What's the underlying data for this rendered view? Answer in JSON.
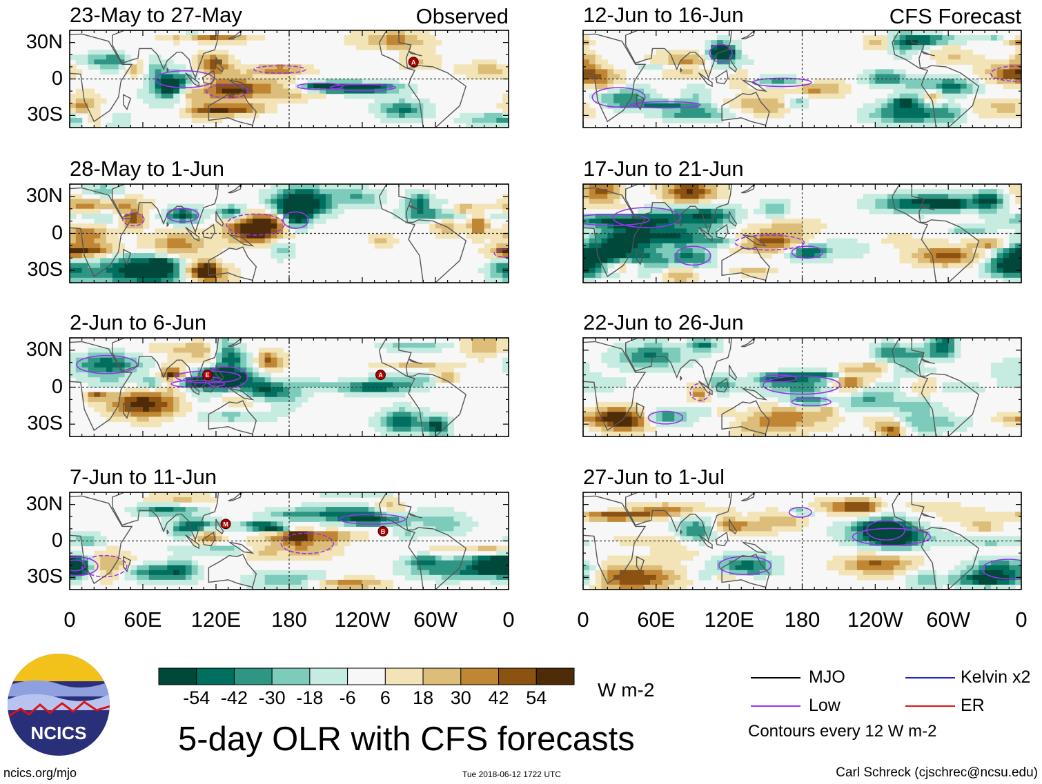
{
  "figure": {
    "title": "5-day OLR with CFS forecasts",
    "units": "W m-2",
    "source_url": "ncics.org/mjo",
    "timestamp": "Tue 2018-06-12 1722 UTC",
    "credit": "Carl Schreck (cjschrec@ncsu.edu)",
    "logo_text": "NCICS",
    "column_labels": {
      "observed": "Observed",
      "forecast": "CFS Forecast"
    }
  },
  "chart_data": {
    "type": "heatmap",
    "variable": "OLR anomaly",
    "units": "W m-2",
    "xlabels": [
      "0",
      "60E",
      "120E",
      "180",
      "120W",
      "60W",
      "0"
    ],
    "ylabels": [
      "30N",
      "0",
      "30S"
    ],
    "lon_range": [
      0,
      360
    ],
    "lat_range": [
      -40,
      40
    ],
    "colorbar": {
      "ticks": [
        -54,
        -42,
        -30,
        -18,
        -6,
        6,
        18,
        30,
        42,
        54
      ],
      "tick_labels": [
        "-54",
        "-42",
        "-30",
        "-18",
        "-6",
        "6",
        "18",
        "30",
        "42",
        "54"
      ],
      "colors": [
        "#00483a",
        "#006f5f",
        "#2f9683",
        "#7ccbbb",
        "#c6ebe1",
        "#f7f7f7",
        "#f3e4b8",
        "#dcbd79",
        "#c08633",
        "#8b5212",
        "#4f2c08"
      ]
    },
    "legend": [
      {
        "label": "MJO",
        "color": "#000000"
      },
      {
        "label": "Kelvin x2",
        "color": "#2222cc"
      },
      {
        "label": "Low",
        "color": "#9933ee"
      },
      {
        "label": "ER",
        "color": "#dd1111"
      }
    ],
    "contour_note": "Contours every 12 W m-2",
    "panels": [
      {
        "title": "23-May to 27-May",
        "source": "Observed",
        "label": "Observed",
        "seed": 11,
        "storms": [
          {
            "lon": 282,
            "lat": 14,
            "label": "A"
          }
        ]
      },
      {
        "title": "28-May to 1-Jun",
        "source": "Observed",
        "label": "",
        "seed": 23,
        "storms": []
      },
      {
        "title": "2-Jun to 6-Jun",
        "source": "Observed",
        "label": "",
        "seed": 37,
        "storms": [
          {
            "lon": 113,
            "lat": 10,
            "label": "E"
          },
          {
            "lon": 255,
            "lat": 10,
            "label": "A"
          }
        ]
      },
      {
        "title": "7-Jun to 11-Jun",
        "source": "Observed",
        "label": "",
        "seed": 41,
        "storms": [
          {
            "lon": 128,
            "lat": 14,
            "label": "M"
          },
          {
            "lon": 257,
            "lat": 8,
            "label": "B"
          }
        ]
      },
      {
        "title": "12-Jun to 16-Jun",
        "source": "CFS Forecast",
        "label": "CFS Forecast",
        "seed": 53,
        "storms": []
      },
      {
        "title": "17-Jun to 21-Jun",
        "source": "CFS Forecast",
        "label": "",
        "seed": 67,
        "storms": []
      },
      {
        "title": "22-Jun to 26-Jun",
        "source": "CFS Forecast",
        "label": "",
        "seed": 79,
        "storms": []
      },
      {
        "title": "27-Jun to 1-Jul",
        "source": "CFS Forecast",
        "label": "",
        "seed": 97,
        "storms": []
      }
    ]
  }
}
